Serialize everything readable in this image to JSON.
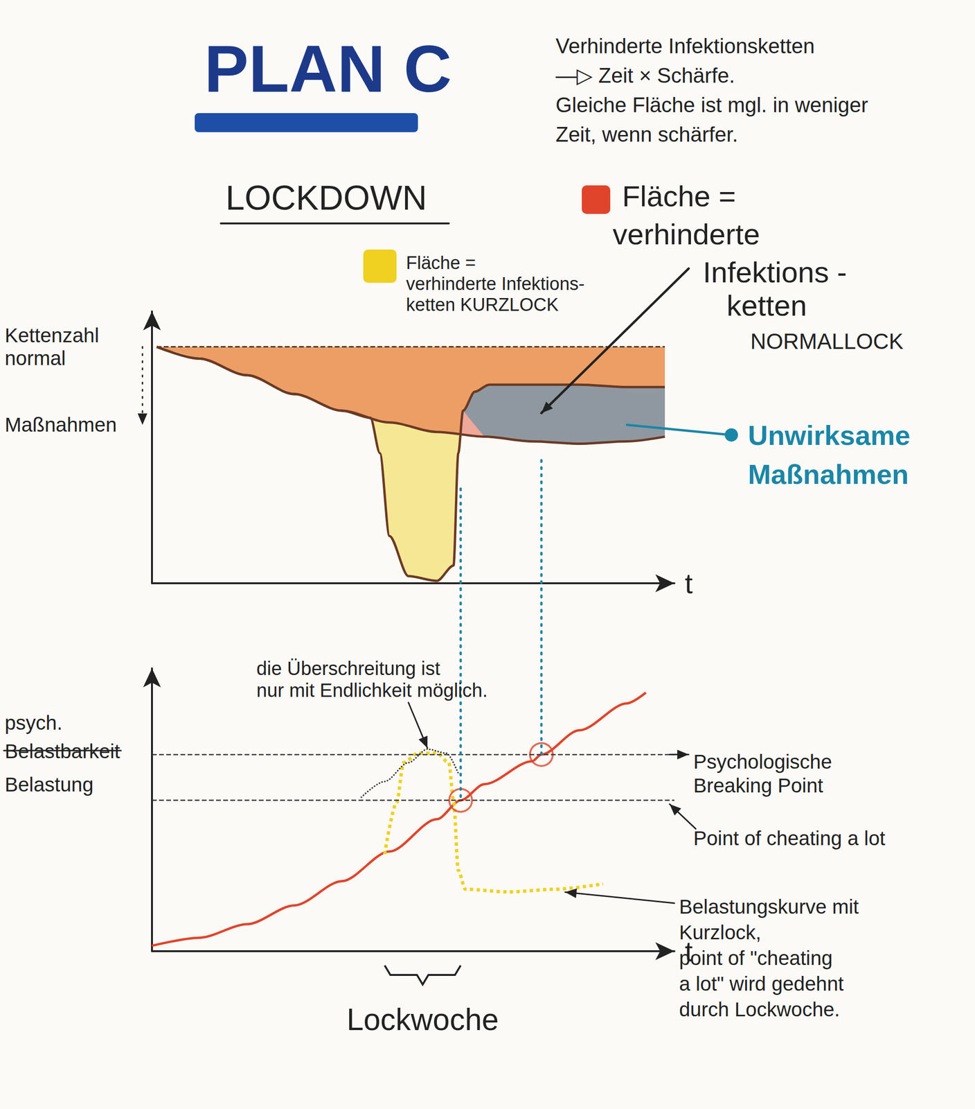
{
  "header": {
    "title": "PLAN C",
    "color": "#1d3a8a",
    "notes": [
      "Verhinderte Infektionsketten",
      "—▷ Zeit × Schärfe.",
      "Gleiche Fläche ist mgl. in weniger",
      "Zeit, wenn schärfer."
    ]
  },
  "chart_data": [
    {
      "type": "line",
      "title": "LOCKDOWN",
      "x_label": "t",
      "tick_labels": false,
      "xlim": [
        0,
        11
      ],
      "ylim": [
        0,
        11.5
      ],
      "y_labels": [
        {
          "lines": [
            "Kettenzahl",
            "normal"
          ],
          "y": 10
        },
        {
          "lines": [
            "Maßnahmen"
          ],
          "y": 6.7
        }
      ],
      "series": [
        {
          "color": "#222222",
          "line_style": "dashed",
          "x": [
            0.1,
            10.8
          ],
          "values": [
            10,
            10
          ]
        },
        {
          "color": "#6b3a24",
          "line_style": "solid",
          "x": [
            0.1,
            1,
            2,
            3,
            4,
            5,
            6,
            7,
            8,
            9,
            10,
            10.8
          ],
          "values": [
            10,
            9.5,
            8.8,
            8.0,
            7.3,
            6.8,
            6.4,
            6.2,
            6.0,
            5.9,
            6.0,
            6.2
          ]
        },
        {
          "color": "#6b3a24",
          "line_style": "solid",
          "x": [
            0.1,
            1,
            2,
            3,
            4,
            4.6,
            4.8,
            5.0,
            5.4,
            6.0,
            6.35,
            6.45,
            6.55,
            6.8,
            7.1,
            8,
            9,
            10,
            10.8
          ],
          "values": [
            10,
            9.5,
            8.8,
            8.0,
            7.3,
            7.0,
            5.5,
            2.0,
            0.3,
            0.1,
            0.75,
            5.5,
            7.3,
            8.1,
            8.4,
            8.4,
            8.4,
            8.3,
            8.3
          ]
        }
      ],
      "areas": [
        {
          "lines": [
            "Fläche =",
            "verhinderte Infektions-",
            "ketten KURZLOCK"
          ],
          "color": "#f0d020",
          "upper": 0,
          "lower": 2
        },
        {
          "lines": [
            "Fläche =",
            "verhinderte",
            "Infektions -",
            "ketten",
            "NORMALLOCK"
          ],
          "color": "#e0452b",
          "upper": 0,
          "lower": 1,
          "point": [
            8.2,
            7.2
          ]
        },
        {
          "lines": [
            "Unwirksame",
            "Maßnahmen"
          ],
          "color": "#1b86a8",
          "upper": 2,
          "lower": 1,
          "xlim": [
            6.5,
            10.8
          ],
          "point": [
            10.0,
            6.7
          ]
        }
      ]
    },
    {
      "type": "line",
      "x_label": "t",
      "tick_labels": false,
      "xlim": [
        0,
        11
      ],
      "ylim": [
        0,
        10.5
      ],
      "y_label": [
        {
          "text": "psych."
        },
        {
          "text": "Belastbarkeit",
          "struck": true
        },
        {
          "text": "Belastung"
        }
      ],
      "series": [
        {
          "color": "#e0452b",
          "line_style": "solid",
          "x": [
            0,
            1,
            2,
            3,
            4,
            5,
            6,
            6.5,
            7,
            8,
            8.2,
            9,
            10,
            10.4
          ],
          "values": [
            0.2,
            0.5,
            1.0,
            1.7,
            2.6,
            3.7,
            4.9,
            5.6,
            6.2,
            7.05,
            7.3,
            8.2,
            9.2,
            9.6
          ]
        },
        {
          "color": "#f0d020",
          "line_style": "dotted",
          "x": [
            4.9,
            5.15,
            5.3,
            5.6,
            6.0,
            6.25,
            6.35,
            6.45,
            6.6,
            7.5,
            8.5,
            9.5
          ],
          "values": [
            3.6,
            5.5,
            7.0,
            7.35,
            7.35,
            7.0,
            5.6,
            3.0,
            2.3,
            2.2,
            2.3,
            2.5
          ]
        },
        {
          "color": "#333333",
          "line_style": "dotted",
          "x": [
            4.4,
            4.9,
            5.4,
            5.8,
            6.2,
            6.45
          ],
          "values": [
            5.7,
            6.3,
            7.0,
            7.5,
            7.35,
            6.6
          ]
        }
      ],
      "thresholds": [
        {
          "lines": [
            "Psychologische",
            "Breaking Point"
          ],
          "y": 7.3
        },
        {
          "lines": [
            "Point of cheating a lot"
          ],
          "y": 5.6
        }
      ],
      "markers": {
        "color": "#e0452b",
        "marker": "circle",
        "x": [
          6.5,
          8.2
        ],
        "values": [
          5.6,
          7.3
        ]
      },
      "annotations": [
        {
          "lines": [
            "die Überschreitung ist",
            "nur mit Endlichkeit möglich."
          ],
          "x": 5.8,
          "y": 7.4
        },
        {
          "lines": [
            "Belastungskurve mit",
            "Kurzlock,",
            "point of \"cheating",
            "a lot\" wird gedehnt",
            "durch Lockwoche."
          ],
          "x": 8.6,
          "y": 2.3
        }
      ],
      "span": {
        "text": "Lockwoche",
        "x": [
          4.9,
          6.5
        ]
      }
    }
  ],
  "connectors": {
    "color": "#1b86a8",
    "line_style": "dotted",
    "x": [
      6.5,
      8.2
    ],
    "from_y": [
      4.0,
      5.2
    ],
    "to_y": [
      5.6,
      7.3
    ]
  }
}
